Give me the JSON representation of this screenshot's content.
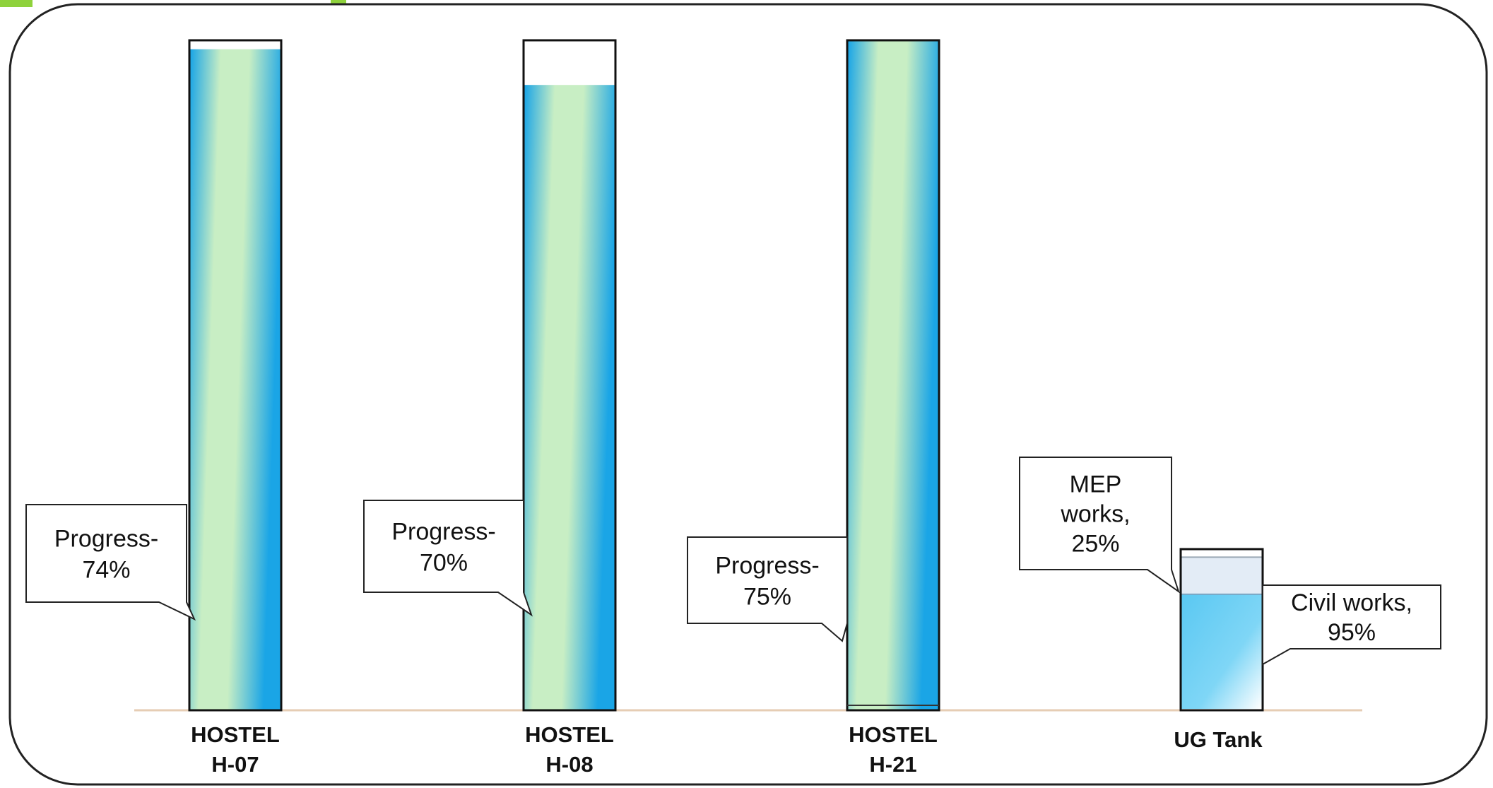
{
  "chart_data": {
    "type": "bar",
    "title": "",
    "xlabel": "",
    "ylabel": "",
    "ylim": [
      0,
      100
    ],
    "grid": false,
    "legend": "none",
    "categories": [
      {
        "line1": "HOSTEL",
        "line2": "H-07"
      },
      {
        "line1": "HOSTEL",
        "line2": "H-08"
      },
      {
        "line1": "HOSTEL",
        "line2": "H-21"
      },
      {
        "line1": "UG Tank",
        "line2": ""
      }
    ],
    "bars": [
      {
        "value": 74,
        "callout": [
          "Progress-",
          "74%"
        ]
      },
      {
        "value": 70,
        "callout": [
          "Progress-",
          "70%"
        ]
      },
      {
        "value": 75,
        "callout": [
          "Progress-",
          "75%"
        ]
      }
    ],
    "tank": {
      "civil_works": {
        "value": 95,
        "callout": [
          "Civil works,",
          "95%"
        ]
      },
      "mep_works": {
        "value": 25,
        "callout": [
          "MEP",
          "works,",
          "25%"
        ]
      }
    },
    "colors": {
      "fill_green": "#c8eec4",
      "fill_blue": "#1aa5e6",
      "tank_blue": "#62cbf3",
      "tank_mep": "#e3ecf6",
      "baseline": "#e6cdb4",
      "frame": "#222222",
      "top_accent": "#8fd23c"
    }
  }
}
